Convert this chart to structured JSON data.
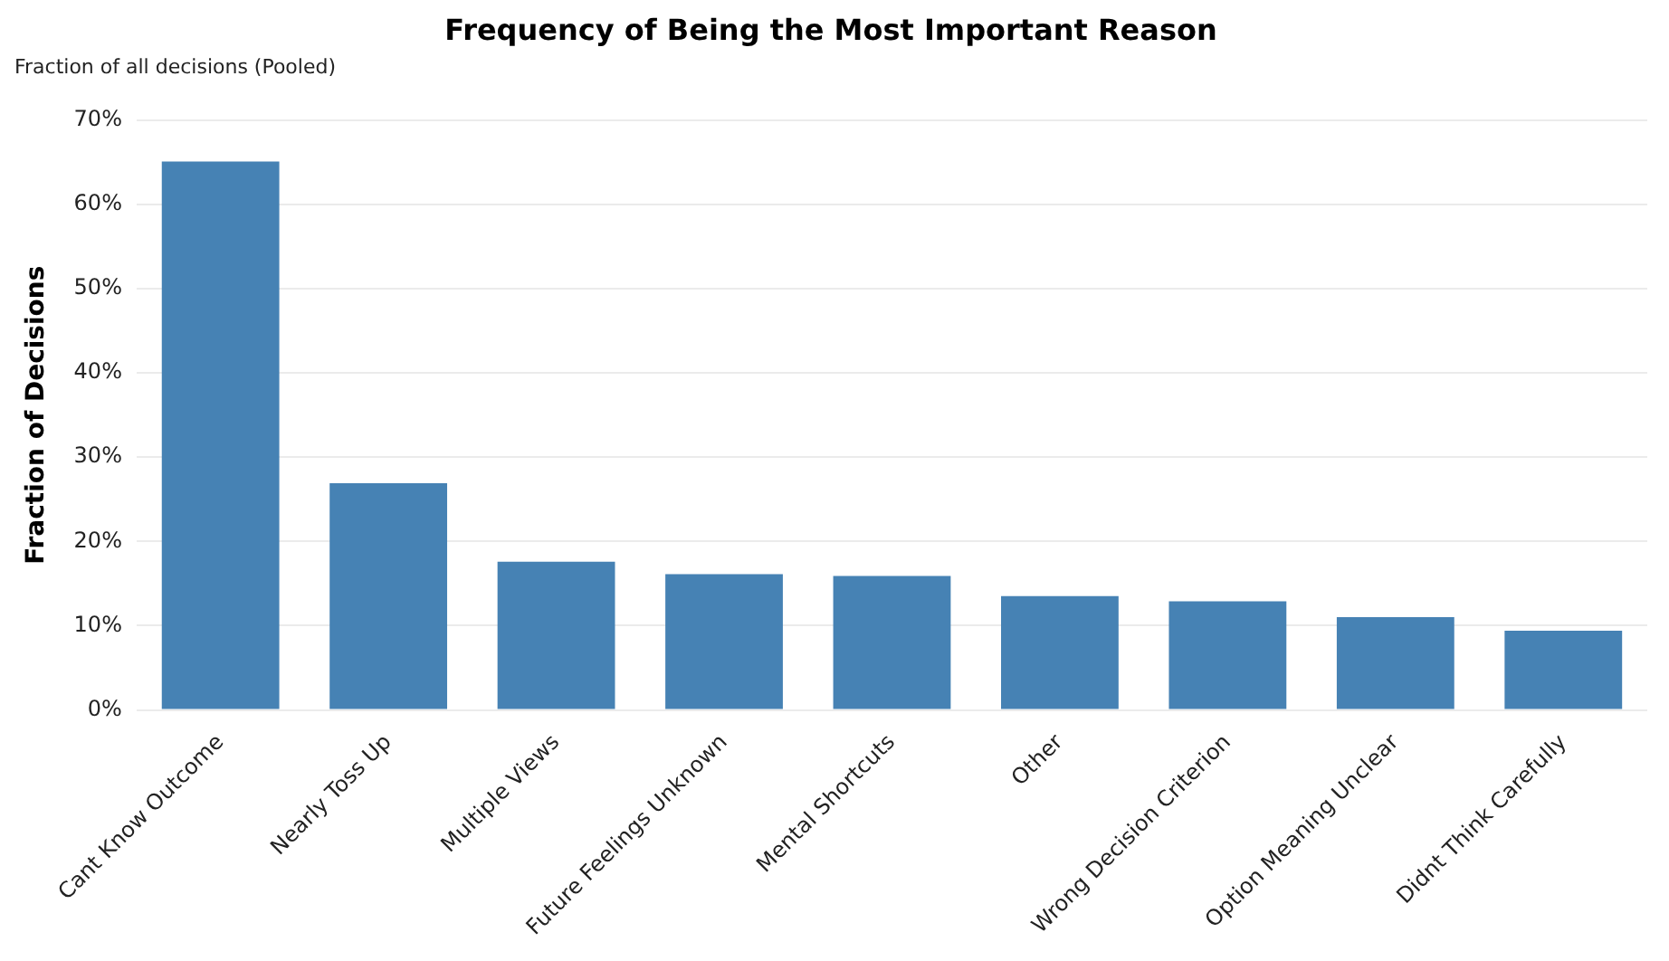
{
  "chart_data": {
    "type": "bar",
    "title": "Frequency of Being the Most Important Reason",
    "subtitle": "Fraction of all decisions (Pooled)",
    "ylabel": "Fraction of Decisions",
    "categories": [
      "Cant Know Outcome",
      "Nearly Toss Up",
      "Multiple Views",
      "Future Feelings Unknown",
      "Mental Shortcuts",
      "Other",
      "Wrong Decision Criterion",
      "Option Meaning Unclear",
      "Didnt Think Carefully"
    ],
    "values": [
      65.1,
      26.9,
      17.6,
      16.1,
      15.9,
      13.5,
      12.9,
      11.0,
      9.4
    ],
    "color": "#4682b4",
    "ylim": [
      0,
      70
    ],
    "yticks": [
      {
        "value": 0,
        "label": "0%"
      },
      {
        "value": 10,
        "label": "10%"
      },
      {
        "value": 20,
        "label": "20%"
      },
      {
        "value": 30,
        "label": "30%"
      },
      {
        "value": 40,
        "label": "40%"
      },
      {
        "value": 50,
        "label": "50%"
      },
      {
        "value": 60,
        "label": "60%"
      },
      {
        "value": 70,
        "label": "70%"
      }
    ],
    "grid": "y",
    "legend": false
  }
}
